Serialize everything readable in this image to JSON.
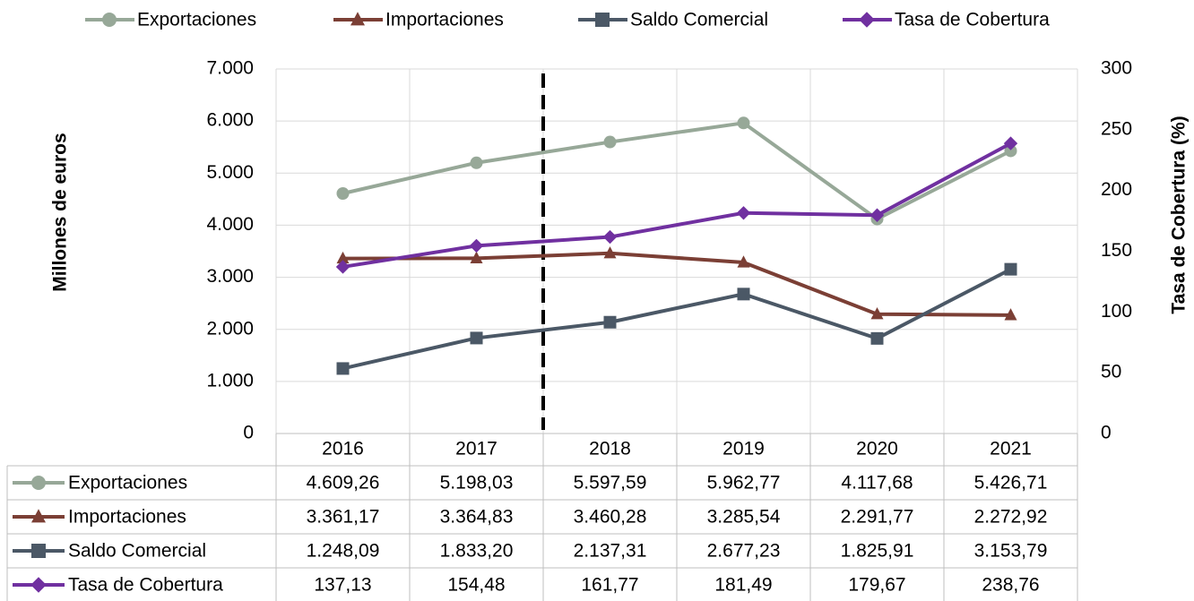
{
  "chart_data": {
    "type": "line",
    "categories": [
      "2016",
      "2017",
      "2018",
      "2019",
      "2020",
      "2021"
    ],
    "y_label": "Millones de euros",
    "y2_label": "Tasa de Cobertura (%)",
    "ylim": [
      0,
      7000
    ],
    "yticks": [
      0,
      {
        "value": 1000,
        "label": "1.000"
      },
      {
        "value": 2000,
        "label": "2.000"
      },
      {
        "value": 3000,
        "label": "3.000"
      },
      {
        "value": 4000,
        "label": "4.000"
      },
      {
        "value": 5000,
        "label": "5.000"
      },
      {
        "value": 6000,
        "label": "6.000"
      },
      {
        "value": 7000,
        "label": "7.000"
      }
    ],
    "y2lim": [
      0,
      300
    ],
    "y2ticks": [
      0,
      50,
      100,
      150,
      200,
      250,
      300
    ],
    "grid": true,
    "legend": "top",
    "series": [
      {
        "name": "Exportaciones",
        "color": "#97a898",
        "marker": "circle",
        "values": [
          4609.26,
          5198.03,
          5597.59,
          5962.77,
          4117.68,
          5426.71
        ],
        "value_labels": [
          "4.609,26",
          "5.198,03",
          "5.597,59",
          "5.962,77",
          "4.117,68",
          "5.426,71"
        ]
      },
      {
        "name": "Importaciones",
        "color": "#7b3f35",
        "marker": "triangle",
        "values": [
          3361.17,
          3364.83,
          3460.28,
          3285.54,
          2291.77,
          2272.92
        ],
        "value_labels": [
          "3.361,17",
          "3.364,83",
          "3.460,28",
          "3.285,54",
          "2.291,77",
          "2.272,92"
        ]
      },
      {
        "name": "Saldo Comercial",
        "color": "#4b5866",
        "marker": "square",
        "values": [
          1248.09,
          1833.2,
          2137.31,
          2677.23,
          1825.91,
          3153.79
        ],
        "value_labels": [
          "1.248,09",
          "1.833,20",
          "2.137,31",
          "2.677,23",
          "1.825,91",
          "3.153,79"
        ]
      },
      {
        "name": "Tasa de Cobertura",
        "color": "#7030a0",
        "marker": "diamond",
        "axis": "y2",
        "values": [
          137.13,
          154.48,
          161.77,
          181.49,
          179.67,
          238.76
        ],
        "value_labels": [
          "137,13",
          "154,48",
          "161,77",
          "181,49",
          "179,67",
          "238,76"
        ]
      }
    ]
  }
}
